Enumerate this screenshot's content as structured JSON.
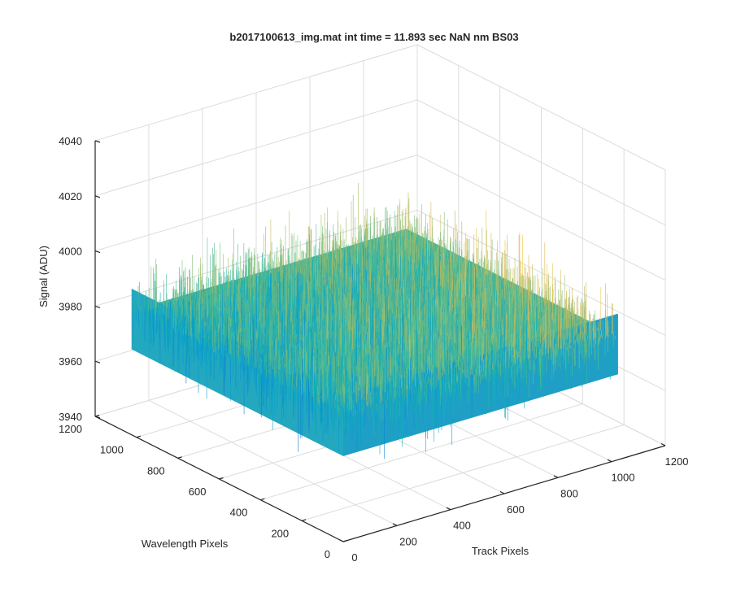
{
  "chart_data": {
    "type": "surface3d",
    "title": "b2017100613_img.mat int time = 11.893 sec  NaN nm BS03",
    "xlabel": "Track Pixels",
    "ylabel": "Wavelength Pixels",
    "zlabel": "Signal (ADU)",
    "xlim": [
      0,
      1200
    ],
    "ylim": [
      0,
      1200
    ],
    "zlim": [
      3940,
      4040
    ],
    "x_ticks": [
      "0",
      "200",
      "400",
      "600",
      "800",
      "1000",
      "1200"
    ],
    "y_ticks": [
      "0",
      "200",
      "400",
      "600",
      "800",
      "1000",
      "1200"
    ],
    "z_ticks": [
      "3940",
      "3960",
      "3980",
      "4000",
      "4020",
      "4040"
    ],
    "surface": {
      "x_range": [
        0,
        1024
      ],
      "y_range": [
        0,
        1024
      ],
      "mean_signal": 3985,
      "noise_range": [
        3950,
        4025
      ],
      "colormap": "parula"
    },
    "grid": true
  }
}
